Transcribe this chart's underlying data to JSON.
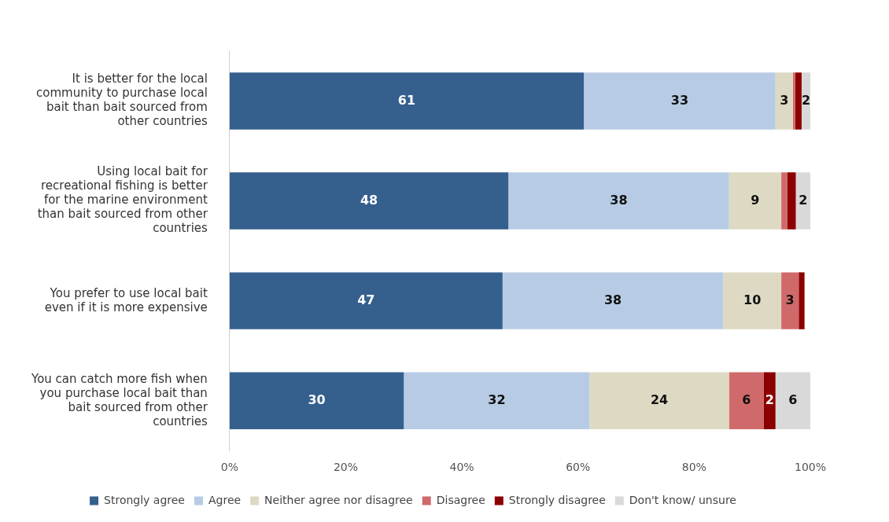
{
  "chart_data": {
    "type": "bar",
    "orientation": "horizontal",
    "stacked": true,
    "legend": "bottom",
    "grid": false,
    "categories": [
      "It is better for the local community to purchase local bait than bait sourced from other countries",
      "Using local bait for recreational fishing is better for the marine environment than bait sourced from other countries",
      "You prefer to use local bait even if it is more expensive",
      "You can catch more fish when you purchase local bait than bait sourced from other countries"
    ],
    "xlim": [
      0,
      100
    ],
    "xticks": [
      {
        "value": 0,
        "label": "0%"
      },
      {
        "value": 20,
        "label": "20%"
      },
      {
        "value": 40,
        "label": "40%"
      },
      {
        "value": 60,
        "label": "60%"
      },
      {
        "value": 80,
        "label": "80%"
      },
      {
        "value": 100,
        "label": "100%"
      }
    ],
    "series": [
      {
        "name": "Strongly agree",
        "color": "#355f8d",
        "values": [
          61,
          48,
          47,
          30
        ],
        "value_labels": [
          "61",
          "48",
          "47",
          "30"
        ]
      },
      {
        "name": "Agree",
        "color": "#b7cce4",
        "values": [
          33,
          38,
          38,
          32
        ],
        "value_labels": [
          "33",
          "38",
          "38",
          "32"
        ]
      },
      {
        "name": "Neither agree nor disagree",
        "color": "#ddd9c3",
        "values": [
          3,
          9,
          10,
          24
        ],
        "value_labels": [
          "3",
          "9",
          "10",
          "24"
        ]
      },
      {
        "name": "Disagree",
        "color": "#d06a6a",
        "values": [
          0.4,
          1,
          3,
          6
        ],
        "value_labels": [
          null,
          null,
          "3",
          "6"
        ]
      },
      {
        "name": "Strongly disagree",
        "color": "#8b0000",
        "values": [
          1.1,
          1.5,
          1,
          2
        ],
        "value_labels": [
          null,
          null,
          null,
          "2"
        ]
      },
      {
        "name": "Don't know/ unsure",
        "color": "#d9d9d9",
        "values": [
          1.5,
          2.5,
          null,
          6
        ],
        "value_labels": [
          "2",
          "2",
          null,
          "6"
        ]
      }
    ]
  }
}
